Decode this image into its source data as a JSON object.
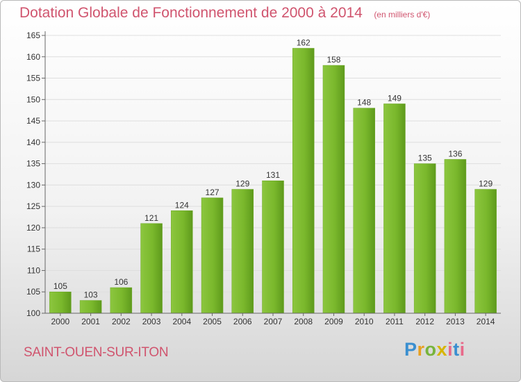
{
  "chart_data": {
    "type": "bar",
    "title": "Dotation Globale de Fonctionnement de 2000 à 2014",
    "subtitle": "(en milliers d'€)",
    "categories": [
      "2000",
      "2001",
      "2002",
      "2003",
      "2004",
      "2005",
      "2006",
      "2007",
      "2008",
      "2009",
      "2010",
      "2011",
      "2012",
      "2013",
      "2014"
    ],
    "values": [
      105,
      103,
      106,
      121,
      124,
      127,
      129,
      131,
      162,
      158,
      148,
      149,
      135,
      136,
      129
    ],
    "ylim": [
      100,
      165
    ],
    "yticks": [
      100,
      105,
      110,
      115,
      120,
      125,
      130,
      135,
      140,
      145,
      150,
      155,
      160,
      165
    ],
    "xlabel": "",
    "ylabel": "",
    "grid": true,
    "bar_color": "#7cbb2c"
  },
  "footer": {
    "commune": "SAINT-OUEN-SUR-ITON",
    "logo": "Proxiti"
  }
}
